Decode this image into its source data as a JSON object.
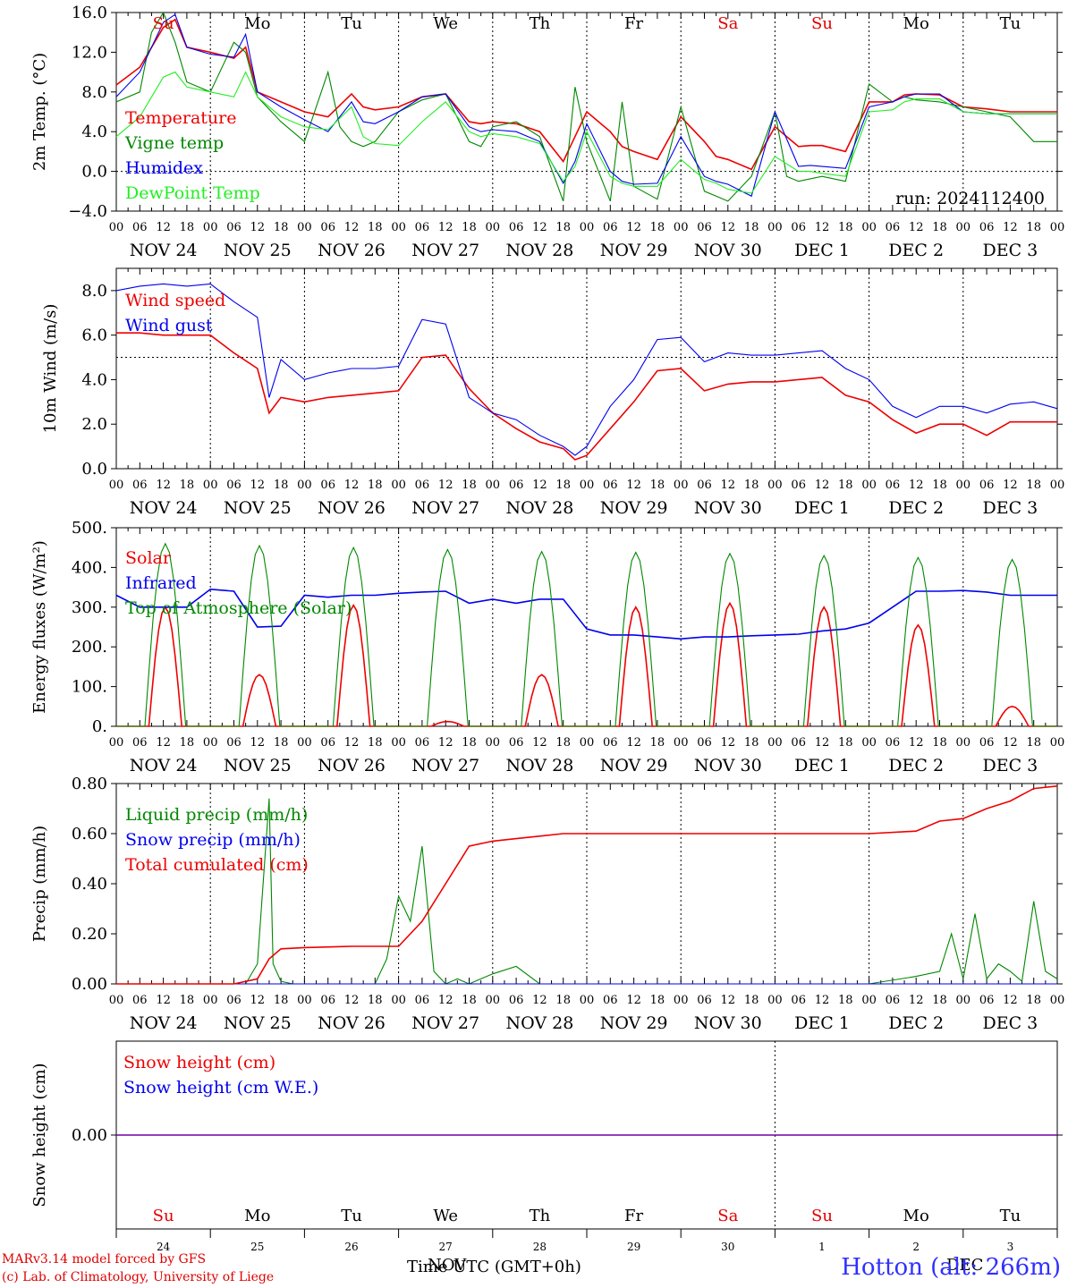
{
  "run_label": "run: 2024112400",
  "day_names": [
    {
      "text": "Su",
      "color": "#e00000"
    },
    {
      "text": "Mo",
      "color": "#000000"
    },
    {
      "text": "Tu",
      "color": "#000000"
    },
    {
      "text": "We",
      "color": "#000000"
    },
    {
      "text": "Th",
      "color": "#000000"
    },
    {
      "text": "Fr",
      "color": "#000000"
    },
    {
      "text": "Sa",
      "color": "#e00000"
    },
    {
      "text": "Su",
      "color": "#e00000"
    },
    {
      "text": "Mo",
      "color": "#000000"
    },
    {
      "text": "Tu",
      "color": "#000000"
    }
  ],
  "date_labels": [
    "NOV 24",
    "NOV 25",
    "NOV 26",
    "NOV 27",
    "NOV 28",
    "NOV 29",
    "NOV 30",
    "DEC  1",
    "DEC  2",
    "DEC  3"
  ],
  "day_numbers": [
    "24",
    "25",
    "26",
    "27",
    "28",
    "29",
    "30",
    "1",
    "2",
    "3"
  ],
  "hour_ticks": [
    "00",
    "06",
    "12",
    "18"
  ],
  "footer": {
    "model": "MARv3.14 model forced by GFS",
    "lab": "(c) Lab. of Climatology, University of Liege",
    "time_label": "Time UTC (GMT+0h)",
    "station": "Hotton (alt: 266m)",
    "month_overlay": "NOV",
    "month_overlay2": "DEC"
  },
  "colors": {
    "red": "#ee0000",
    "green": "#008800",
    "blue": "#0000ee",
    "lightgreen": "#22ee22",
    "purple": "#7000a0"
  },
  "chart_data": [
    {
      "type": "line",
      "ylabel": "2m Temp. (°C)",
      "ylim": [
        -4,
        16
      ],
      "yticks": [
        "16.0",
        "12.0",
        "8.0",
        "4.0",
        "0.0",
        "−4.0"
      ],
      "ytick_values": [
        16,
        12,
        8,
        4,
        0,
        -4
      ],
      "ref_line": 0,
      "x_unit": "hours since NOV 24 00 UTC",
      "series": [
        {
          "name": "Temperature",
          "color": "red",
          "x": [
            0,
            6,
            12,
            15,
            18,
            24,
            30,
            33,
            36,
            42,
            48,
            54,
            60,
            63,
            66,
            72,
            78,
            84,
            90,
            93,
            96,
            102,
            108,
            114,
            120,
            126,
            129,
            132,
            138,
            144,
            150,
            153,
            156,
            162,
            168,
            174,
            177,
            180,
            186,
            192,
            198,
            201,
            204,
            210,
            216,
            222,
            228,
            234,
            240
          ],
          "y": [
            8.7,
            10.5,
            14.5,
            15.3,
            12.5,
            12.0,
            11.4,
            12.5,
            8.0,
            7.0,
            6.0,
            5.5,
            7.8,
            6.5,
            6.2,
            6.5,
            7.5,
            7.8,
            5.0,
            4.8,
            5.0,
            4.8,
            4.0,
            1.0,
            6.0,
            4.0,
            2.5,
            2.0,
            1.2,
            5.5,
            3.0,
            1.5,
            1.2,
            0.2,
            4.5,
            2.5,
            2.6,
            2.6,
            2.0,
            7.0,
            7.0,
            7.7,
            7.8,
            7.7,
            6.5,
            6.3,
            6.0,
            6.0,
            6.0
          ]
        },
        {
          "name": "Vigne temp",
          "color": "green",
          "x": [
            0,
            6,
            9,
            12,
            15,
            18,
            24,
            30,
            33,
            36,
            42,
            48,
            54,
            57,
            60,
            63,
            66,
            72,
            78,
            84,
            90,
            93,
            96,
            102,
            108,
            114,
            117,
            120,
            126,
            129,
            132,
            138,
            144,
            150,
            153,
            156,
            162,
            168,
            171,
            174,
            180,
            186,
            192,
            198,
            201,
            204,
            210,
            216,
            222,
            228,
            234,
            240
          ],
          "y": [
            7.0,
            8.0,
            14.0,
            16.0,
            13.0,
            9.0,
            8.0,
            13.0,
            12.0,
            7.5,
            5.0,
            3.0,
            10.0,
            4.5,
            3.0,
            2.5,
            3.0,
            6.0,
            7.2,
            7.8,
            3.0,
            2.5,
            4.5,
            5.0,
            3.5,
            -3.0,
            8.5,
            3.0,
            -3.0,
            7.0,
            -1.5,
            -2.8,
            6.5,
            -2.0,
            -2.5,
            -3.0,
            -0.5,
            6.0,
            -0.5,
            -1.0,
            -0.5,
            -1.0,
            8.8,
            7.0,
            7.5,
            7.2,
            7.0,
            6.5,
            6.0,
            5.5,
            3.0,
            3.0
          ]
        },
        {
          "name": "Humidex",
          "color": "blue",
          "x": [
            0,
            6,
            12,
            15,
            18,
            24,
            30,
            33,
            36,
            42,
            48,
            54,
            60,
            63,
            66,
            72,
            78,
            84,
            90,
            93,
            96,
            102,
            108,
            114,
            117,
            120,
            126,
            129,
            132,
            138,
            144,
            150,
            153,
            156,
            162,
            168,
            174,
            177,
            180,
            186,
            192,
            198,
            201,
            204,
            210,
            216,
            222,
            228,
            234,
            240
          ],
          "y": [
            7.5,
            10.0,
            15.0,
            15.8,
            12.5,
            11.8,
            11.5,
            13.8,
            8.0,
            6.5,
            5.2,
            4.0,
            7.0,
            5.0,
            4.8,
            6.0,
            7.5,
            7.8,
            4.5,
            4.0,
            4.2,
            4.0,
            3.0,
            -1.2,
            1.0,
            4.8,
            0.0,
            -1.0,
            -1.3,
            -1.2,
            3.5,
            -0.5,
            -1.0,
            -1.3,
            -2.5,
            6.0,
            0.5,
            0.6,
            0.5,
            0.3,
            6.5,
            7.0,
            7.5,
            7.8,
            7.8,
            6.0,
            5.8,
            5.8,
            5.8,
            5.8
          ]
        },
        {
          "name": "DewPoint Temp",
          "color": "lightgreen",
          "x": [
            0,
            6,
            12,
            15,
            18,
            24,
            30,
            33,
            36,
            42,
            48,
            54,
            60,
            63,
            66,
            72,
            78,
            84,
            90,
            93,
            96,
            102,
            108,
            114,
            117,
            120,
            126,
            129,
            132,
            138,
            144,
            150,
            153,
            156,
            162,
            168,
            174,
            177,
            180,
            186,
            192,
            198,
            201,
            204,
            210,
            216,
            222,
            228,
            234,
            240
          ],
          "y": [
            3.5,
            5.5,
            9.5,
            10.0,
            8.5,
            8.0,
            7.5,
            10.0,
            7.5,
            5.5,
            4.5,
            4.2,
            6.5,
            3.5,
            2.8,
            2.6,
            5.0,
            7.0,
            4.0,
            3.5,
            3.8,
            3.5,
            2.8,
            -1.0,
            0.5,
            4.0,
            -0.5,
            -1.2,
            -1.5,
            -1.5,
            1.2,
            -0.8,
            -1.2,
            -1.8,
            -2.2,
            1.5,
            0.0,
            0.0,
            -0.2,
            -0.5,
            6.0,
            6.2,
            7.0,
            7.3,
            7.3,
            6.0,
            5.8,
            5.8,
            5.8,
            5.8
          ]
        }
      ]
    },
    {
      "type": "line",
      "ylabel": "10m Wind (m/s)",
      "ylim": [
        0,
        9
      ],
      "yticks": [
        "8.0",
        "6.0",
        "4.0",
        "2.0",
        "0.0"
      ],
      "ytick_values": [
        8,
        6,
        4,
        2,
        0
      ],
      "ref_line": 5,
      "series": [
        {
          "name": "Wind speed",
          "color": "red",
          "x": [
            0,
            6,
            12,
            18,
            24,
            30,
            36,
            39,
            42,
            48,
            54,
            60,
            66,
            72,
            78,
            84,
            90,
            96,
            102,
            108,
            114,
            117,
            120,
            126,
            132,
            138,
            144,
            150,
            156,
            162,
            168,
            174,
            180,
            186,
            192,
            198,
            204,
            210,
            216,
            222,
            228,
            234,
            240
          ],
          "y": [
            6.1,
            6.1,
            6.0,
            6.0,
            6.0,
            5.2,
            4.5,
            2.5,
            3.2,
            3.0,
            3.2,
            3.3,
            3.4,
            3.5,
            5.0,
            5.1,
            3.6,
            2.5,
            1.8,
            1.2,
            0.9,
            0.4,
            0.6,
            1.8,
            3.0,
            4.4,
            4.5,
            3.5,
            3.8,
            3.9,
            3.9,
            4.0,
            4.1,
            3.3,
            3.0,
            2.2,
            1.6,
            2.0,
            2.0,
            1.5,
            2.1,
            2.1,
            2.1
          ]
        },
        {
          "name": "Wind gust",
          "color": "blue",
          "x": [
            0,
            6,
            12,
            18,
            24,
            30,
            36,
            39,
            42,
            48,
            54,
            60,
            66,
            72,
            78,
            84,
            90,
            96,
            102,
            108,
            114,
            117,
            120,
            126,
            132,
            138,
            144,
            150,
            156,
            162,
            168,
            174,
            180,
            186,
            192,
            198,
            204,
            210,
            216,
            222,
            228,
            234,
            240
          ],
          "y": [
            8.0,
            8.2,
            8.3,
            8.2,
            8.3,
            7.5,
            6.8,
            3.2,
            4.9,
            4.0,
            4.3,
            4.5,
            4.5,
            4.6,
            6.7,
            6.5,
            3.2,
            2.5,
            2.2,
            1.5,
            1.0,
            0.6,
            1.0,
            2.8,
            4.0,
            5.8,
            5.9,
            4.8,
            5.2,
            5.1,
            5.1,
            5.2,
            5.3,
            4.5,
            4.0,
            2.8,
            2.3,
            2.8,
            2.8,
            2.5,
            2.9,
            3.0,
            2.7
          ]
        }
      ]
    },
    {
      "type": "line",
      "ylabel": "Energy fluxes (W/m²)",
      "ylim": [
        0,
        500
      ],
      "yticks": [
        "500.",
        "400.",
        "300.",
        "200.",
        "100.",
        "0."
      ],
      "ytick_values": [
        500,
        400,
        300,
        200,
        100,
        0
      ],
      "series": [
        {
          "name": "Solar",
          "color": "red",
          "peaks": [
            300,
            130,
            305,
            12,
            130,
            300,
            310,
            300,
            255,
            50
          ]
        },
        {
          "name": "Infrared",
          "color": "blue",
          "x": [
            0,
            6,
            12,
            18,
            24,
            30,
            36,
            42,
            48,
            54,
            60,
            66,
            72,
            78,
            84,
            90,
            96,
            102,
            108,
            114,
            120,
            126,
            132,
            138,
            144,
            150,
            156,
            162,
            168,
            174,
            180,
            186,
            192,
            198,
            204,
            210,
            216,
            222,
            228,
            234,
            240
          ],
          "y": [
            330,
            300,
            300,
            300,
            345,
            340,
            250,
            252,
            330,
            325,
            330,
            330,
            335,
            338,
            340,
            310,
            320,
            310,
            320,
            320,
            245,
            230,
            230,
            225,
            220,
            225,
            225,
            228,
            230,
            232,
            240,
            245,
            260,
            300,
            340,
            340,
            342,
            338,
            330,
            330,
            330
          ]
        },
        {
          "name": "Top of Atmosphere (Solar)",
          "color": "green",
          "peaks": [
            460,
            455,
            450,
            445,
            440,
            438,
            435,
            430,
            425,
            420
          ]
        }
      ]
    },
    {
      "type": "line",
      "ylabel": "Precip (mm/h)",
      "ylim": [
        0,
        0.8
      ],
      "yticks": [
        "0.80",
        "0.60",
        "0.40",
        "0.20",
        "0.00"
      ],
      "ytick_values": [
        0.8,
        0.6,
        0.4,
        0.2,
        0
      ],
      "series": [
        {
          "name": "Liquid precip (mm/h)",
          "color": "green",
          "x": [
            0,
            24,
            33,
            36,
            39,
            40,
            42,
            45,
            48,
            54,
            60,
            63,
            66,
            69,
            72,
            75,
            78,
            81,
            84,
            87,
            90,
            93,
            96,
            102,
            108,
            114,
            120,
            144,
            168,
            192,
            204,
            210,
            213,
            216,
            219,
            222,
            225,
            228,
            231,
            234,
            237,
            240
          ],
          "y": [
            0,
            0,
            0,
            0.08,
            0.74,
            0.08,
            0.01,
            0,
            0,
            0,
            0,
            0,
            0,
            0.1,
            0.35,
            0.25,
            0.55,
            0.05,
            0,
            0.02,
            0,
            0.02,
            0.04,
            0.07,
            0,
            0,
            0,
            0,
            0,
            0,
            0.03,
            0.05,
            0.2,
            0.02,
            0.28,
            0.02,
            0.08,
            0.05,
            0.01,
            0.33,
            0.05,
            0.02
          ]
        },
        {
          "name": "Snow precip (mm/h)",
          "color": "blue",
          "x": [
            0,
            240
          ],
          "y": [
            0,
            0
          ]
        },
        {
          "name": "Total cumulated (cm)",
          "color": "red",
          "x": [
            0,
            30,
            36,
            39,
            42,
            48,
            60,
            72,
            78,
            84,
            90,
            96,
            102,
            108,
            114,
            120,
            144,
            168,
            192,
            204,
            210,
            216,
            222,
            228,
            234,
            240
          ],
          "y": [
            0,
            0,
            0.02,
            0.1,
            0.14,
            0.145,
            0.15,
            0.15,
            0.25,
            0.4,
            0.55,
            0.57,
            0.58,
            0.59,
            0.6,
            0.6,
            0.6,
            0.6,
            0.6,
            0.61,
            0.65,
            0.66,
            0.7,
            0.73,
            0.78,
            0.79
          ]
        }
      ]
    },
    {
      "type": "line",
      "ylabel": "Snow height (cm)",
      "ylim": [
        -1,
        1
      ],
      "yticks": [
        "0.00"
      ],
      "ytick_values": [
        0
      ],
      "series": [
        {
          "name": "Snow height (cm)",
          "color": "red",
          "x": [
            0,
            240
          ],
          "y": [
            0,
            0
          ]
        },
        {
          "name": "Snow height (cm W.E.)",
          "color": "blue",
          "x": [
            0,
            240
          ],
          "y": [
            0,
            0
          ]
        }
      ]
    }
  ]
}
